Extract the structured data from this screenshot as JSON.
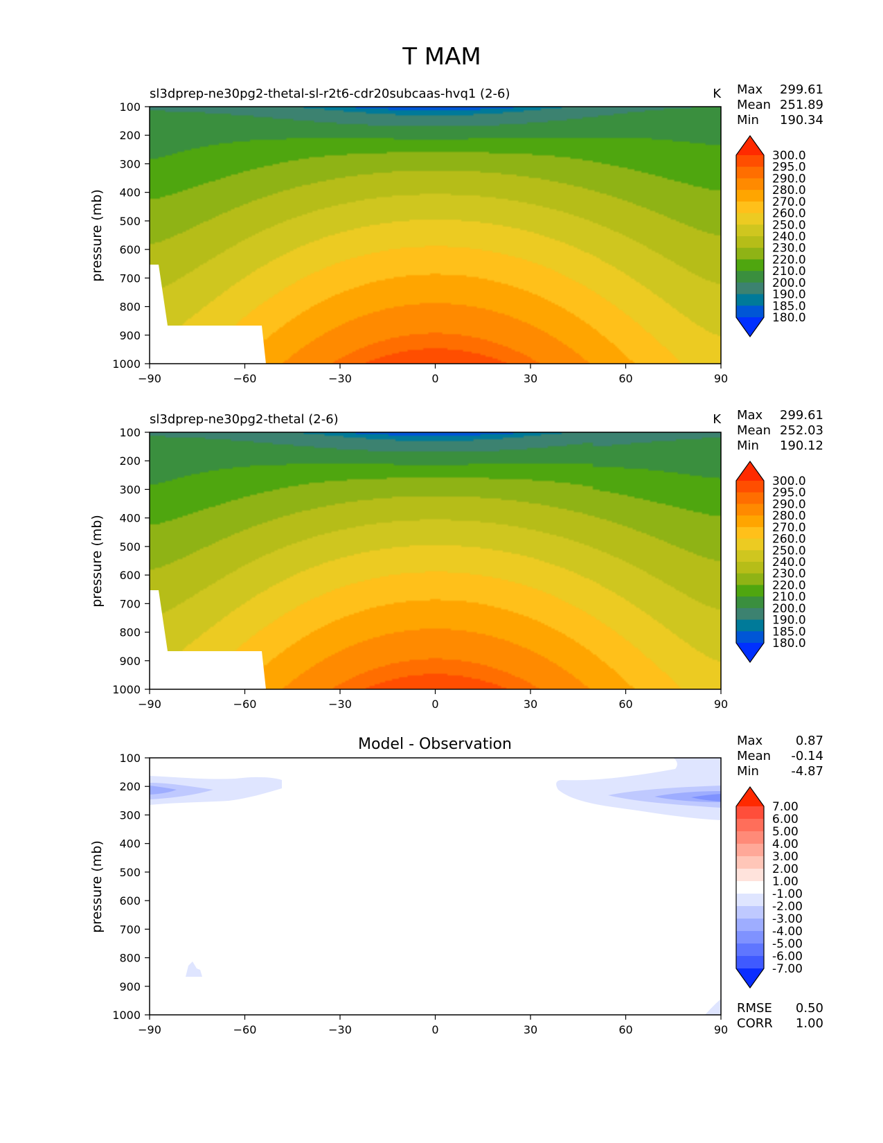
{
  "figure": {
    "title": "T MAM"
  },
  "chart_data": [
    {
      "type": "contour",
      "title": "sl3dprep-ne30pg2-thetal-sl-r2t6-cdr20subcaas-hvq1 (2-6)",
      "units": "K",
      "ylabel": "pressure (mb)",
      "x_ticks": [
        "−90",
        "−60",
        "−30",
        "0",
        "30",
        "60",
        "90"
      ],
      "y_ticks": [
        "100",
        "200",
        "300",
        "400",
        "500",
        "600",
        "700",
        "800",
        "900",
        "1000"
      ],
      "xlim": [
        -90,
        90
      ],
      "ylim": [
        1000,
        100
      ],
      "stats": [
        {
          "label": "Max",
          "value": "299.61"
        },
        {
          "label": "Mean",
          "value": "251.89"
        },
        {
          "label": "Min",
          "value": "190.34"
        }
      ],
      "colorbar": {
        "levels": [
          "300.0",
          "295.0",
          "290.0",
          "280.0",
          "270.0",
          "260.0",
          "250.0",
          "240.0",
          "230.0",
          "220.0",
          "210.0",
          "200.0",
          "190.0",
          "185.0",
          "180.0"
        ],
        "colors": [
          "#ff2a00",
          "#ff4e00",
          "#ff6e00",
          "#ff8a00",
          "#ffa500",
          "#ffc01a",
          "#eccb22",
          "#cfc61f",
          "#b6bd18",
          "#8fb315",
          "#4fa60f",
          "#3a8f3e",
          "#3c8270",
          "#007a99",
          "#0056d6",
          "#0030ff"
        ],
        "min_value": 180,
        "max_value": 300
      },
      "fields": {
        "surface_t": 299.6,
        "top_t": 195,
        "pole_surface_t": 255
      }
    },
    {
      "type": "contour",
      "title": "sl3dprep-ne30pg2-thetal (2-6)",
      "units": "K",
      "ylabel": "pressure (mb)",
      "x_ticks": [
        "−90",
        "−60",
        "−30",
        "0",
        "30",
        "60",
        "90"
      ],
      "y_ticks": [
        "100",
        "200",
        "300",
        "400",
        "500",
        "600",
        "700",
        "800",
        "900",
        "1000"
      ],
      "xlim": [
        -90,
        90
      ],
      "ylim": [
        1000,
        100
      ],
      "stats": [
        {
          "label": "Max",
          "value": "299.61"
        },
        {
          "label": "Mean",
          "value": "252.03"
        },
        {
          "label": "Min",
          "value": "190.12"
        }
      ],
      "colorbar": {
        "levels": [
          "300.0",
          "295.0",
          "290.0",
          "280.0",
          "270.0",
          "260.0",
          "250.0",
          "240.0",
          "230.0",
          "220.0",
          "210.0",
          "200.0",
          "190.0",
          "185.0",
          "180.0"
        ],
        "colors": [
          "#ff2a00",
          "#ff4e00",
          "#ff6e00",
          "#ff8a00",
          "#ffa500",
          "#ffc01a",
          "#eccb22",
          "#cfc61f",
          "#b6bd18",
          "#8fb315",
          "#4fa60f",
          "#3a8f3e",
          "#3c8270",
          "#007a99",
          "#0056d6",
          "#0030ff"
        ],
        "min_value": 180,
        "max_value": 300
      },
      "fields": {
        "surface_t": 299.6,
        "top_t": 195,
        "pole_surface_t": 255
      }
    },
    {
      "type": "contour",
      "title": "Model - Observation",
      "units": "",
      "ylabel": "pressure (mb)",
      "x_ticks": [
        "−90",
        "−60",
        "−30",
        "0",
        "30",
        "60",
        "90"
      ],
      "y_ticks": [
        "100",
        "200",
        "300",
        "400",
        "500",
        "600",
        "700",
        "800",
        "900",
        "1000"
      ],
      "xlim": [
        -90,
        90
      ],
      "ylim": [
        1000,
        100
      ],
      "stats": [
        {
          "label": "Max",
          "value": "0.87"
        },
        {
          "label": "Mean",
          "value": "-0.14"
        },
        {
          "label": "Min",
          "value": "-4.87"
        }
      ],
      "colorbar": {
        "levels": [
          "7.00",
          "6.00",
          "5.00",
          "4.00",
          "3.00",
          "2.00",
          "1.00",
          "-1.00",
          "-2.00",
          "-3.00",
          "-4.00",
          "-5.00",
          "-6.00",
          "-7.00"
        ],
        "colors": [
          "#ff2a00",
          "#ff4e3a",
          "#ff6e5a",
          "#ff8a78",
          "#ffa898",
          "#ffc6b8",
          "#ffe3dc",
          "#ffffff",
          "#dfe5ff",
          "#bfc9ff",
          "#9eadff",
          "#7f92ff",
          "#5f76ff",
          "#3f5aff",
          "#0a2dff"
        ],
        "min_value": -7,
        "max_value": 7
      },
      "footer_stats": [
        {
          "label": "RMSE",
          "value": "0.50"
        },
        {
          "label": "CORR",
          "value": "1.00"
        }
      ]
    }
  ]
}
